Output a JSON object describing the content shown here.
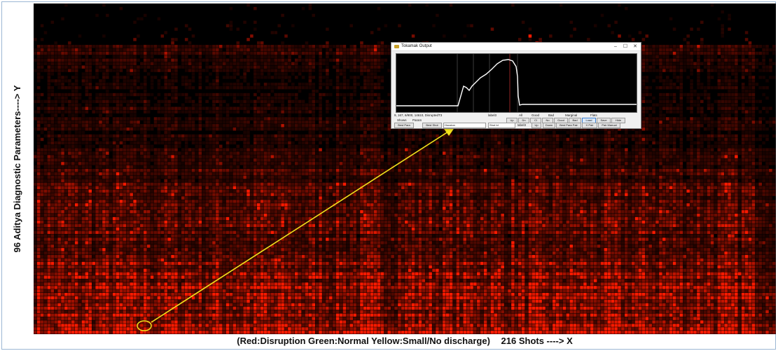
{
  "chart_data": {
    "type": "heatmap",
    "title": "",
    "xlabel": "(Red:Disruption Green:Normal Yellow:Small/No discharge)   216 Shots ----> X",
    "xlabel_parts": [
      "(Red:Disruption Green:Normal Yellow:Small/No discharge)",
      "216 Shots ----> X"
    ],
    "ylabel": "96 Aditya Diagnostic Parameters----> Y",
    "n_cols": 216,
    "n_rows": 96,
    "colormap": {
      "low": "#000000",
      "high": "#ff1a00"
    },
    "row_intensity_profile": [
      0.08,
      0.1,
      0.15,
      0.22,
      0.18,
      0.15,
      0.12,
      0.1,
      0.1,
      0.1,
      0.12,
      0.15,
      0.12,
      0.16,
      0.2,
      0.18,
      0.25,
      0.3,
      0.28,
      0.32,
      0.35,
      0.38,
      0.4,
      0.38,
      0.45,
      0.5,
      0.55,
      0.6,
      0.6,
      0.65,
      0.72,
      0.78
    ],
    "highlight": {
      "col": 30,
      "row": 94,
      "color": "#f2e21b"
    }
  },
  "inset": {
    "title": "Tokamak Output",
    "controls": [
      "–",
      "☐",
      "✕"
    ],
    "info_text": "9, 167, 6/900, 14610, DisruptedT3",
    "label1": "label3",
    "radio_options": [
      "All",
      "Good",
      "Bad",
      "Marginal",
      "Flats"
    ],
    "checkbox_labels": [
      "Shows",
      "Param"
    ],
    "row_buttons_1": [
      "Up",
      "Dn",
      "Cl",
      "No",
      "Good",
      "Bad",
      "Load",
      "Save",
      "Hide"
    ],
    "row_buttons_2": [
      "Best Para",
      "Best Shot"
    ],
    "combo_value": "Houston",
    "shot_field": "Shot Id",
    "label2": "label3",
    "row_buttons_3": [
      "Up",
      "Down",
      "Best Para Pair",
      "X Pair",
      "Pair Manual"
    ],
    "trace_color": "#ffffff",
    "marker_color": "#cc3333"
  },
  "colors": {
    "arrow": "#f2e21b",
    "background": "#000000",
    "frame": "#9bb7d4"
  }
}
